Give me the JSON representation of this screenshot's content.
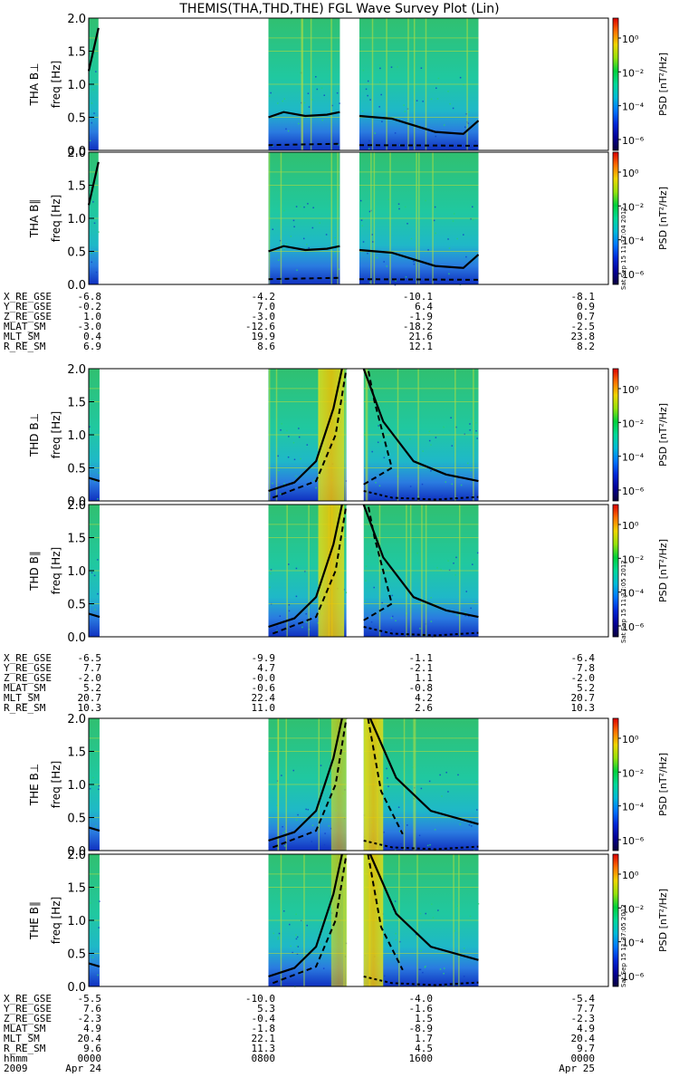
{
  "title": "THEMIS(THA,THD,THE) FGL Wave Survey Plot (Lin)",
  "chart_data": {
    "type": "heatmap",
    "x_range_hours": [
      0,
      24
    ],
    "y_range_hz": [
      0,
      2.0
    ],
    "y_ticks": [
      "0.0",
      "0.5",
      "1.0",
      "1.5",
      "2.0"
    ],
    "y_unit_label": "freq [Hz]",
    "colorbar": {
      "label": "PSD [nT²/Hz]",
      "tick_labels": [
        "10⁰",
        "10⁻²",
        "10⁻⁴",
        "10⁻⁶"
      ],
      "scale": "log"
    },
    "panels": [
      {
        "name": "THA B⊥",
        "segments": [
          [
            0,
            0.45
          ],
          [
            8.3,
            11.6
          ],
          [
            12.5,
            18
          ]
        ]
      },
      {
        "name": "THA B∥",
        "segments": [
          [
            0,
            0.45
          ],
          [
            8.3,
            11.6
          ],
          [
            12.5,
            18
          ]
        ]
      },
      {
        "name": "THD B⊥",
        "segments": [
          [
            0,
            0.5
          ],
          [
            8.3,
            11.9
          ],
          [
            12.7,
            18
          ]
        ]
      },
      {
        "name": "THD B∥",
        "segments": [
          [
            0,
            0.5
          ],
          [
            8.3,
            11.9
          ],
          [
            12.7,
            18
          ]
        ]
      },
      {
        "name": "THE B⊥",
        "segments": [
          [
            0,
            0.5
          ],
          [
            8.3,
            11.9
          ],
          [
            12.7,
            18
          ]
        ]
      },
      {
        "name": "THE B∥",
        "segments": [
          [
            0,
            0.5
          ],
          [
            8.3,
            11.9
          ],
          [
            12.7,
            18
          ]
        ]
      }
    ],
    "ephemeris_tables": [
      {
        "rows": [
          {
            "label": "X_RE_GSE",
            "values": [
              "-6.8",
              "-4.2",
              "-10.1",
              "-8.1"
            ]
          },
          {
            "label": "Y_RE_GSE",
            "values": [
              "-0.2",
              "7.0",
              "6.4",
              "0.9"
            ]
          },
          {
            "label": "Z_RE_GSE",
            "values": [
              "1.0",
              "-3.0",
              "-1.9",
              "0.7"
            ]
          },
          {
            "label": "MLAT_SM",
            "values": [
              "-3.0",
              "-12.6",
              "-18.2",
              "-2.5"
            ]
          },
          {
            "label": "MLT_SM",
            "values": [
              "0.4",
              "19.9",
              "21.6",
              "23.8"
            ]
          },
          {
            "label": "R_RE_SM",
            "values": [
              "6.9",
              "8.6",
              "12.1",
              "8.2"
            ]
          }
        ]
      },
      {
        "rows": [
          {
            "label": "X_RE_GSE",
            "values": [
              "-6.5",
              "-9.9",
              "-1.1",
              "-6.4"
            ]
          },
          {
            "label": "Y_RE_GSE",
            "values": [
              "7.7",
              "4.7",
              "-2.1",
              "7.8"
            ]
          },
          {
            "label": "Z_RE_GSE",
            "values": [
              "-2.0",
              "-0.0",
              "1.1",
              "-2.0"
            ]
          },
          {
            "label": "MLAT_SM",
            "values": [
              "5.2",
              "-0.6",
              "-0.8",
              "5.2"
            ]
          },
          {
            "label": "MLT_SM",
            "values": [
              "20.7",
              "22.4",
              "4.2",
              "20.7"
            ]
          },
          {
            "label": "R_RE_SM",
            "values": [
              "10.3",
              "11.0",
              "2.6",
              "10.3"
            ]
          }
        ]
      },
      {
        "rows": [
          {
            "label": "X_RE_GSE",
            "values": [
              "-5.5",
              "-10.0",
              "-4.0",
              "-5.4"
            ]
          },
          {
            "label": "Y_RE_GSE",
            "values": [
              "7.6",
              "5.3",
              "-1.6",
              "7.7"
            ]
          },
          {
            "label": "Z_RE_GSE",
            "values": [
              "-2.3",
              "-0.4",
              "1.5",
              "-2.3"
            ]
          },
          {
            "label": "MLAT_SM",
            "values": [
              "4.9",
              "-1.8",
              "-8.9",
              "4.9"
            ]
          },
          {
            "label": "MLT_SM",
            "values": [
              "20.4",
              "22.1",
              "1.7",
              "20.4"
            ]
          },
          {
            "label": "R_RE_SM",
            "values": [
              "9.6",
              "11.3",
              "4.5",
              "9.7"
            ]
          },
          {
            "label": "hhmm",
            "values": [
              "0000",
              "0800",
              "1600",
              "0000"
            ]
          },
          {
            "label": "2009",
            "values": [
              "Apr 24",
              "",
              "",
              "Apr 25"
            ]
          }
        ]
      }
    ],
    "stamps": [
      "Sat Sep 15 11:37:04 2012",
      "Sat Sep 15 11:37:05 2012",
      "Sat Sep 15 11:37:05 2012"
    ]
  }
}
